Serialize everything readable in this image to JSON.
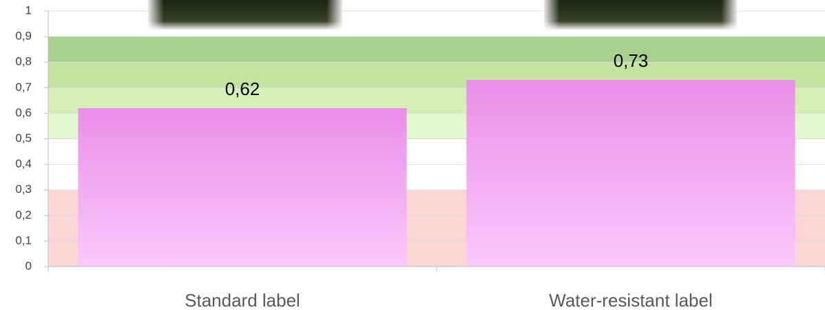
{
  "chart_data": {
    "type": "bar",
    "categories": [
      "Standard label",
      "Water-resistant label"
    ],
    "values": [
      0.62,
      0.73
    ],
    "value_labels": [
      "0,62",
      "0,73"
    ],
    "ylim": [
      0,
      1
    ],
    "yticks": [
      0,
      {
        "value": 0.1,
        "label": "0,1"
      },
      {
        "value": 0.2,
        "label": "0,2"
      },
      {
        "value": 0.3,
        "label": "0,3"
      },
      {
        "value": 0.4,
        "label": "0,4"
      },
      {
        "value": 0.5,
        "label": "0,5"
      },
      {
        "value": 0.6,
        "label": "0,6"
      },
      {
        "value": 0.7,
        "label": "0,7"
      },
      {
        "value": 0.8,
        "label": "0,8"
      },
      {
        "value": 0.9,
        "label": "0,9"
      },
      1
    ],
    "grid": true,
    "bands": [
      {
        "from": 0,
        "to": 0.3,
        "color": "#fcd5d5"
      },
      {
        "from": 0.5,
        "to": 0.6,
        "color": "#e4f8cf"
      },
      {
        "from": 0.6,
        "to": 0.7,
        "color": "#d6efb8"
      },
      {
        "from": 0.7,
        "to": 0.8,
        "color": "#c3e3a1"
      },
      {
        "from": 0.8,
        "to": 0.9,
        "color": "#a9d18e"
      }
    ]
  }
}
